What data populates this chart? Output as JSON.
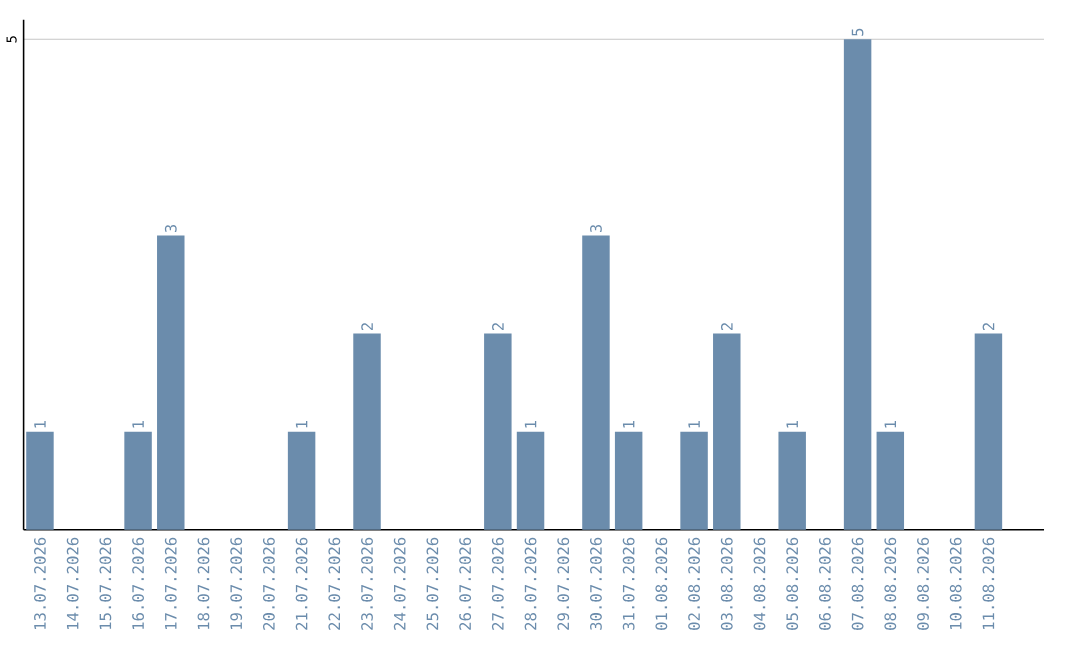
{
  "chart_data": {
    "type": "bar",
    "categories": [
      "13.07.2026",
      "14.07.2026",
      "15.07.2026",
      "16.07.2026",
      "17.07.2026",
      "18.07.2026",
      "19.07.2026",
      "20.07.2026",
      "21.07.2026",
      "22.07.2026",
      "23.07.2026",
      "24.07.2026",
      "25.07.2026",
      "26.07.2026",
      "27.07.2026",
      "28.07.2026",
      "29.07.2026",
      "30.07.2026",
      "31.07.2026",
      "01.08.2026",
      "02.08.2026",
      "03.08.2026",
      "04.08.2026",
      "05.08.2026",
      "06.08.2026",
      "07.08.2026",
      "08.08.2026",
      "09.08.2026",
      "10.08.2026",
      "11.08.2026"
    ],
    "values": [
      1,
      0,
      0,
      1,
      3,
      0,
      0,
      0,
      1,
      0,
      2,
      0,
      0,
      0,
      2,
      1,
      0,
      3,
      1,
      0,
      1,
      2,
      0,
      1,
      0,
      5,
      1,
      0,
      0,
      2
    ],
    "value_labels": [
      "1",
      null,
      null,
      "1",
      "3",
      null,
      null,
      null,
      "1",
      null,
      "2",
      null,
      null,
      null,
      "2",
      "1",
      null,
      "3",
      "1",
      null,
      "1",
      "2",
      null,
      "1",
      null,
      "5",
      "1",
      null,
      null,
      "2"
    ],
    "color": "#6b8cac",
    "ylim": [
      0,
      5.2
    ],
    "yticks": [
      5
    ],
    "grid": "y"
  }
}
